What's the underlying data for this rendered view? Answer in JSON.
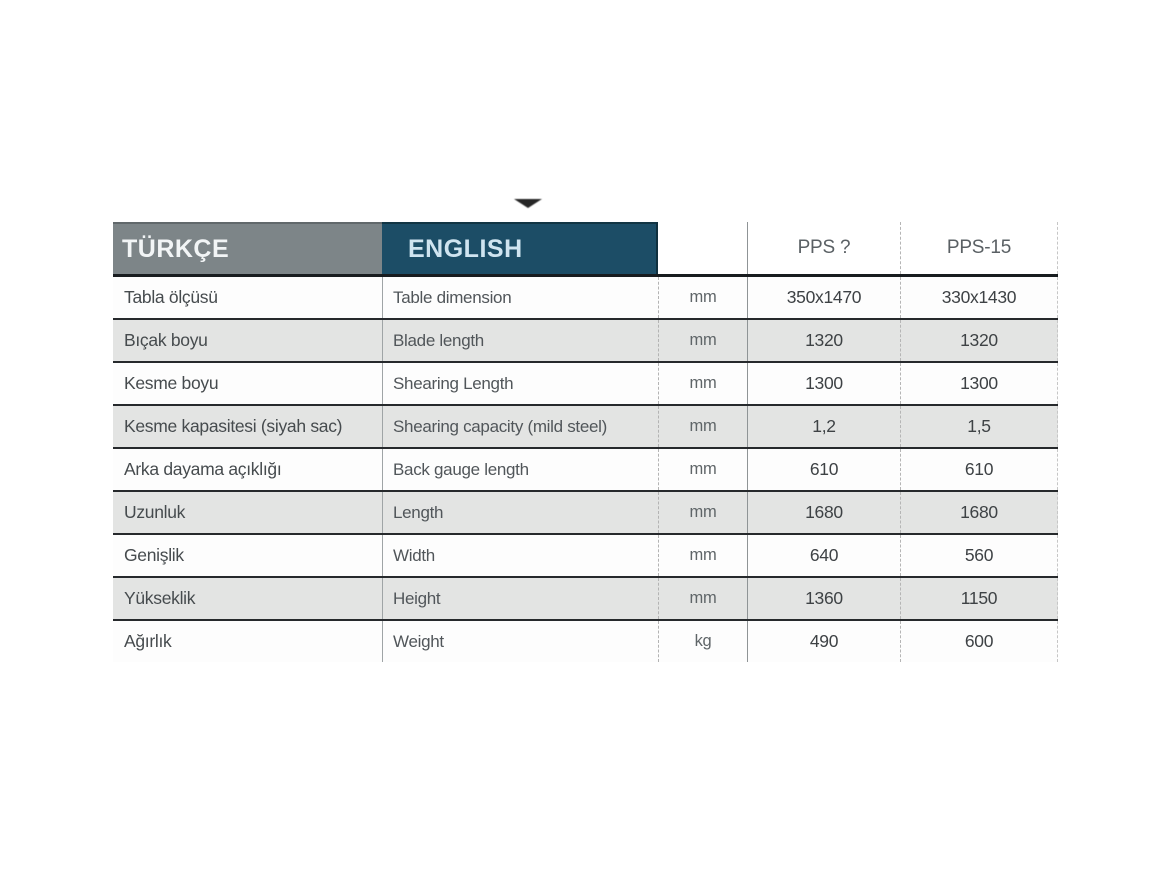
{
  "page": {
    "background": "#ffffff"
  },
  "decor": {
    "arrow_icon": "down-triangle"
  },
  "table": {
    "colors": {
      "turkish_header_bg": "#7d8588",
      "english_header_bg": "#1c4d66",
      "row_alt_bg": "#e3e4e3",
      "row_rule": "#26292c",
      "header_rule": "#181c1f"
    },
    "header": {
      "turkish_label": "TÜRKÇE",
      "english_label": "ENGLISH",
      "unit_label": "",
      "model1": "PPS ?",
      "model2": "PPS-15"
    },
    "rows": [
      {
        "tr": "Tabla ölçüsü",
        "en": "Table dimension",
        "unit": "mm",
        "m1": "350x1470",
        "m2": "330x1430"
      },
      {
        "tr": "Bıçak boyu",
        "en": "Blade length",
        "unit": "mm",
        "m1": "1320",
        "m2": "1320"
      },
      {
        "tr": "Kesme boyu",
        "en": "Shearing Length",
        "unit": "mm",
        "m1": "1300",
        "m2": "1300"
      },
      {
        "tr": "Kesme kapasitesi (siyah sac)",
        "en": "Shearing capacity (mild steel)",
        "unit": "mm",
        "m1": "1,2",
        "m2": "1,5"
      },
      {
        "tr": "Arka dayama açıklığı",
        "en": "Back gauge length",
        "unit": "mm",
        "m1": "610",
        "m2": "610"
      },
      {
        "tr": "Uzunluk",
        "en": "Length",
        "unit": "mm",
        "m1": "1680",
        "m2": "1680"
      },
      {
        "tr": "Genişlik",
        "en": "Width",
        "unit": "mm",
        "m1": "640",
        "m2": "560"
      },
      {
        "tr": "Yükseklik",
        "en": "Height",
        "unit": "mm",
        "m1": "1360",
        "m2": "1150"
      },
      {
        "tr": "Ağırlık",
        "en": "Weight",
        "unit": "kg",
        "m1": "490",
        "m2": "600"
      }
    ]
  }
}
